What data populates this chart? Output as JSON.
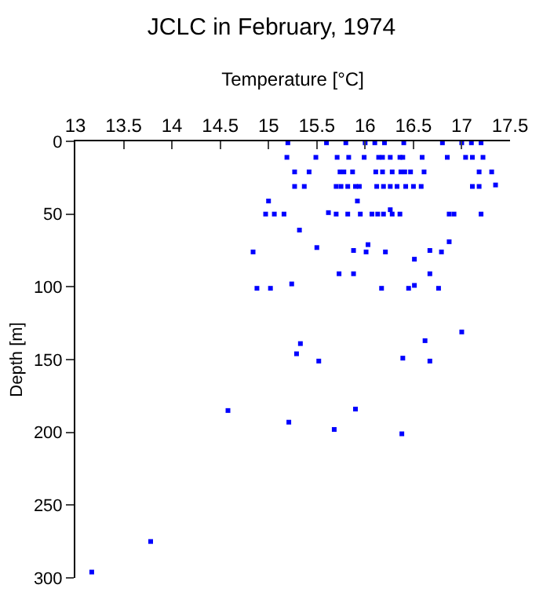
{
  "chart_data": {
    "type": "scatter",
    "title": "JCLC in February, 1974",
    "xlabel": "Temperature [°C]",
    "ylabel": "Depth [m]",
    "color": "#0000ff",
    "marker": "square",
    "xlim": [
      13,
      17.5
    ],
    "xticks": [
      13,
      13.5,
      14,
      14.5,
      15,
      15.5,
      16,
      16.5,
      17,
      17.5
    ],
    "ylim": [
      300,
      0
    ],
    "yticks": [
      0,
      50,
      100,
      150,
      200,
      250,
      300
    ],
    "x": [
      15.2,
      15.6,
      15.8,
      16.0,
      16.1,
      16.2,
      16.4,
      16.8,
      17.0,
      17.1,
      17.2,
      15.19,
      15.49,
      15.71,
      15.83,
      15.99,
      16.14,
      16.18,
      16.26,
      16.36,
      16.39,
      16.59,
      16.85,
      17.04,
      17.11,
      17.22,
      15.27,
      15.42,
      15.74,
      15.78,
      15.87,
      16.11,
      16.18,
      16.28,
      16.37,
      16.41,
      16.47,
      16.61,
      17.18,
      17.31,
      15.27,
      15.37,
      15.7,
      15.75,
      15.82,
      15.9,
      15.94,
      16.12,
      16.19,
      16.26,
      16.33,
      16.42,
      16.5,
      16.58,
      17.11,
      17.18,
      17.35,
      15.0,
      15.92,
      16.26,
      15.62,
      14.97,
      15.06,
      15.16,
      15.7,
      15.82,
      15.95,
      16.07,
      16.13,
      16.19,
      16.28,
      16.36,
      16.87,
      16.92,
      17.2,
      15.32,
      16.87,
      16.03,
      15.5,
      15.88,
      16.67,
      14.84,
      16.01,
      16.21,
      16.79,
      16.51,
      15.73,
      15.88,
      16.67,
      15.24,
      14.88,
      15.02,
      16.17,
      16.45,
      16.51,
      16.76,
      17.0,
      16.62,
      15.33,
      15.29,
      16.39,
      15.52,
      16.67,
      14.58,
      15.9,
      15.21,
      15.68,
      16.38,
      13.78,
      13.17
    ],
    "values": [
      1,
      1,
      1,
      1,
      1,
      1,
      1,
      1,
      1,
      1,
      1,
      11,
      11,
      11,
      11,
      11,
      11,
      11,
      11,
      11,
      11,
      11,
      11,
      11,
      11,
      11,
      21,
      21,
      21,
      21,
      21,
      21,
      21,
      21,
      21,
      21,
      21,
      21,
      21,
      21,
      31,
      31,
      31,
      31,
      31,
      31,
      31,
      31,
      31,
      31,
      31,
      31,
      31,
      31,
      31,
      31,
      30,
      41,
      41,
      47,
      49,
      50,
      50,
      50,
      50,
      50,
      50,
      50,
      50,
      50,
      50,
      50,
      50,
      50,
      50,
      61,
      69,
      71,
      73,
      75,
      75,
      76,
      76,
      76,
      76,
      81,
      91,
      91,
      91,
      98,
      101,
      101,
      101,
      101,
      99,
      101,
      131,
      137,
      139,
      146,
      149,
      151,
      151,
      185,
      184,
      193,
      198,
      201,
      275,
      296
    ]
  }
}
